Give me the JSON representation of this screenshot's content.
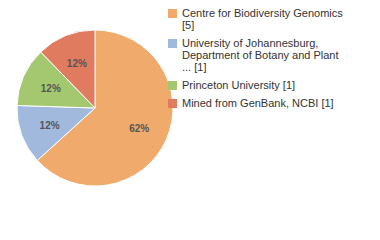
{
  "chart_data": {
    "type": "pie",
    "categories": [
      "Centre for Biodiversity Genomics [5]",
      "University of Johannesburg, Department of Botany and Plant ... [1]",
      "Princeton University [1]",
      "Mined from GenBank, NCBI [1]"
    ],
    "values": [
      62,
      12,
      12,
      12
    ],
    "value_labels": [
      "62%",
      "12%",
      "12%",
      "12%"
    ],
    "colors": [
      "#efaa6c",
      "#a0b9dd",
      "#a3c870",
      "#e07b60"
    ],
    "data_labels": true,
    "legend": "top-right"
  }
}
